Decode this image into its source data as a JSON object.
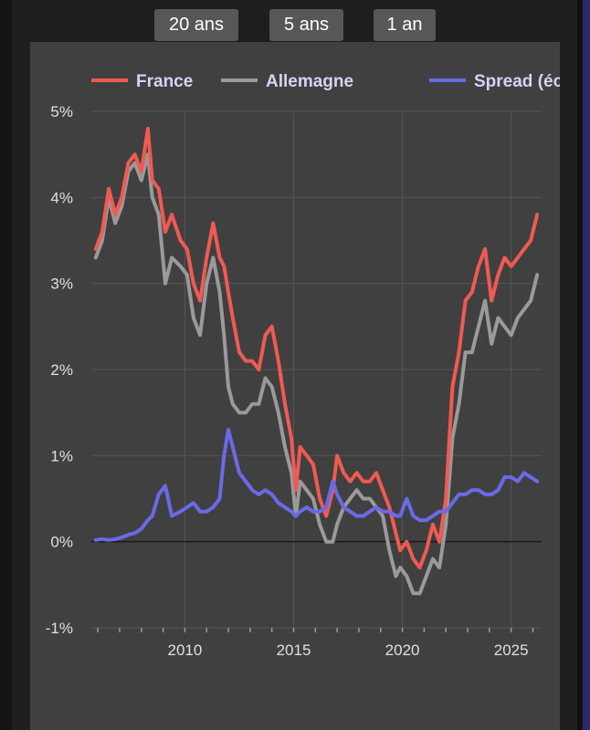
{
  "tabs": [
    {
      "label": "20 ans"
    },
    {
      "label": "5 ans"
    },
    {
      "label": "1 an"
    }
  ],
  "chart_data": {
    "type": "line",
    "legend_position": "top",
    "xlim": [
      2005.7,
      2026.4
    ],
    "ylim": [
      -1,
      5
    ],
    "x_ticks": [
      2010,
      2015,
      2020,
      2025
    ],
    "x_tick_labels": [
      "2010",
      "2015",
      "2020",
      "2025"
    ],
    "y_ticks": [
      -1,
      0,
      1,
      2,
      3,
      4,
      5
    ],
    "y_tick_labels": [
      "-1%",
      "0%",
      "1%",
      "2%",
      "3%",
      "4%",
      "5%"
    ],
    "grid": true,
    "legend": [
      {
        "name": "France",
        "color": "#f05a52"
      },
      {
        "name": "Allemagne",
        "color": "#9a9a9a"
      },
      {
        "name": "Spread (éca...",
        "color": "#6a6ae8"
      }
    ],
    "series": [
      {
        "name": "France",
        "color": "#f05a52",
        "x": [
          2005.9,
          2006.2,
          2006.5,
          2006.8,
          2007.1,
          2007.4,
          2007.7,
          2008.0,
          2008.3,
          2008.5,
          2008.8,
          2009.1,
          2009.4,
          2009.8,
          2010.1,
          2010.4,
          2010.7,
          2011.0,
          2011.3,
          2011.6,
          2011.8,
          2012.0,
          2012.2,
          2012.5,
          2012.8,
          2013.1,
          2013.4,
          2013.7,
          2014.0,
          2014.3,
          2014.6,
          2014.9,
          2015.1,
          2015.3,
          2015.6,
          2015.9,
          2016.2,
          2016.5,
          2016.8,
          2017.0,
          2017.3,
          2017.6,
          2017.9,
          2018.2,
          2018.5,
          2018.8,
          2019.1,
          2019.4,
          2019.7,
          2019.9,
          2020.2,
          2020.5,
          2020.8,
          2021.1,
          2021.4,
          2021.7,
          2022.0,
          2022.3,
          2022.6,
          2022.9,
          2023.2,
          2023.5,
          2023.8,
          2024.1,
          2024.4,
          2024.7,
          2025.0,
          2025.3,
          2025.6,
          2025.9,
          2026.2
        ],
        "values": [
          3.4,
          3.6,
          4.1,
          3.8,
          4.0,
          4.4,
          4.5,
          4.3,
          4.8,
          4.2,
          4.1,
          3.6,
          3.8,
          3.5,
          3.4,
          3.0,
          2.8,
          3.3,
          3.7,
          3.3,
          3.2,
          2.9,
          2.6,
          2.2,
          2.1,
          2.1,
          2.0,
          2.4,
          2.5,
          2.1,
          1.6,
          1.2,
          0.6,
          1.1,
          1.0,
          0.9,
          0.5,
          0.3,
          0.6,
          1.0,
          0.8,
          0.7,
          0.8,
          0.7,
          0.7,
          0.8,
          0.6,
          0.4,
          0.1,
          -0.1,
          0.0,
          -0.2,
          -0.3,
          -0.1,
          0.2,
          0.0,
          0.5,
          1.8,
          2.2,
          2.8,
          2.9,
          3.2,
          3.4,
          2.8,
          3.1,
          3.3,
          3.2,
          3.3,
          3.4,
          3.5,
          3.8
        ]
      },
      {
        "name": "Allemagne",
        "color": "#9a9a9a",
        "x": [
          2005.9,
          2006.2,
          2006.5,
          2006.8,
          2007.1,
          2007.4,
          2007.7,
          2008.0,
          2008.3,
          2008.5,
          2008.8,
          2009.1,
          2009.4,
          2009.8,
          2010.1,
          2010.4,
          2010.7,
          2011.0,
          2011.3,
          2011.6,
          2011.8,
          2012.0,
          2012.2,
          2012.5,
          2012.8,
          2013.1,
          2013.4,
          2013.7,
          2014.0,
          2014.3,
          2014.6,
          2014.9,
          2015.1,
          2015.3,
          2015.6,
          2015.9,
          2016.2,
          2016.5,
          2016.8,
          2017.0,
          2017.3,
          2017.6,
          2017.9,
          2018.2,
          2018.5,
          2018.8,
          2019.1,
          2019.4,
          2019.7,
          2019.9,
          2020.2,
          2020.5,
          2020.8,
          2021.1,
          2021.4,
          2021.7,
          2022.0,
          2022.3,
          2022.6,
          2022.9,
          2023.2,
          2023.5,
          2023.8,
          2024.1,
          2024.4,
          2024.7,
          2025.0,
          2025.3,
          2025.6,
          2025.9,
          2026.2
        ],
        "values": [
          3.3,
          3.5,
          4.0,
          3.7,
          3.9,
          4.3,
          4.4,
          4.2,
          4.5,
          4.0,
          3.8,
          3.0,
          3.3,
          3.2,
          3.1,
          2.6,
          2.4,
          3.0,
          3.3,
          2.9,
          2.4,
          1.8,
          1.6,
          1.5,
          1.5,
          1.6,
          1.6,
          1.9,
          1.8,
          1.5,
          1.1,
          0.8,
          0.3,
          0.7,
          0.6,
          0.5,
          0.2,
          0.0,
          0.0,
          0.2,
          0.4,
          0.5,
          0.6,
          0.5,
          0.5,
          0.4,
          0.3,
          -0.1,
          -0.4,
          -0.3,
          -0.4,
          -0.6,
          -0.6,
          -0.4,
          -0.2,
          -0.3,
          0.2,
          1.2,
          1.6,
          2.2,
          2.2,
          2.5,
          2.8,
          2.3,
          2.6,
          2.5,
          2.4,
          2.6,
          2.7,
          2.8,
          3.1
        ]
      },
      {
        "name": "Spread (éca...",
        "color": "#6a6ae8",
        "x": [
          2005.9,
          2006.2,
          2006.5,
          2006.8,
          2007.1,
          2007.4,
          2007.7,
          2008.0,
          2008.3,
          2008.5,
          2008.8,
          2009.1,
          2009.4,
          2009.8,
          2010.1,
          2010.4,
          2010.7,
          2011.0,
          2011.3,
          2011.6,
          2011.8,
          2012.0,
          2012.2,
          2012.5,
          2012.8,
          2013.1,
          2013.4,
          2013.7,
          2014.0,
          2014.3,
          2014.6,
          2014.9,
          2015.1,
          2015.3,
          2015.6,
          2015.9,
          2016.2,
          2016.5,
          2016.8,
          2017.0,
          2017.3,
          2017.6,
          2017.9,
          2018.2,
          2018.5,
          2018.8,
          2019.1,
          2019.4,
          2019.7,
          2019.9,
          2020.2,
          2020.5,
          2020.8,
          2021.1,
          2021.4,
          2021.7,
          2022.0,
          2022.3,
          2022.6,
          2022.9,
          2023.2,
          2023.5,
          2023.8,
          2024.1,
          2024.4,
          2024.7,
          2025.0,
          2025.3,
          2025.6,
          2025.9,
          2026.2
        ],
        "values": [
          0.02,
          0.03,
          0.02,
          0.03,
          0.05,
          0.08,
          0.1,
          0.15,
          0.25,
          0.3,
          0.55,
          0.65,
          0.3,
          0.35,
          0.4,
          0.45,
          0.35,
          0.35,
          0.4,
          0.5,
          1.0,
          1.3,
          1.1,
          0.8,
          0.7,
          0.6,
          0.55,
          0.6,
          0.55,
          0.45,
          0.4,
          0.35,
          0.3,
          0.35,
          0.4,
          0.35,
          0.35,
          0.4,
          0.7,
          0.55,
          0.4,
          0.35,
          0.3,
          0.3,
          0.35,
          0.4,
          0.35,
          0.35,
          0.3,
          0.3,
          0.5,
          0.3,
          0.25,
          0.25,
          0.3,
          0.35,
          0.35,
          0.45,
          0.55,
          0.55,
          0.6,
          0.6,
          0.55,
          0.55,
          0.6,
          0.75,
          0.75,
          0.7,
          0.8,
          0.75,
          0.7
        ]
      }
    ]
  }
}
